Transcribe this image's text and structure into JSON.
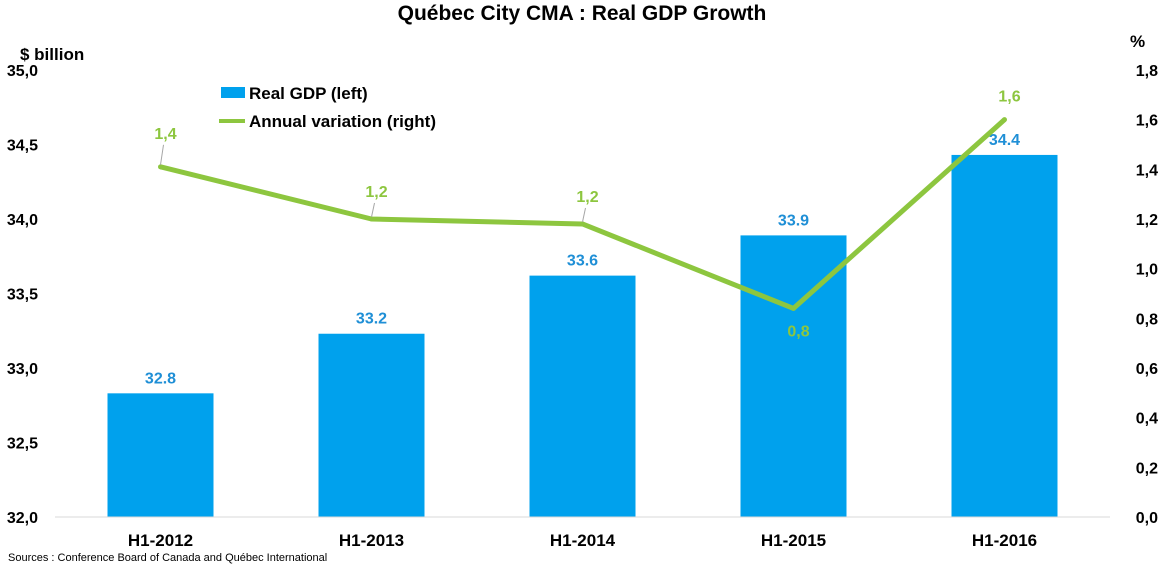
{
  "chart_data": {
    "type": "bar",
    "title": "Québec City CMA : Real GDP Growth",
    "categories": [
      "H1-2012",
      "H1-2013",
      "H1-2014",
      "H1-2015",
      "H1-2016"
    ],
    "left_axis": {
      "unit_label": "$ billion",
      "ylim": [
        32.0,
        35.0
      ],
      "ticks": [
        "32,0",
        "32,5",
        "33,0",
        "33,5",
        "34,0",
        "34,5",
        "35,0"
      ],
      "tick_values": [
        32.0,
        32.5,
        33.0,
        33.5,
        34.0,
        34.5,
        35.0
      ]
    },
    "right_axis": {
      "unit_label": "%",
      "ylim": [
        0.0,
        1.8
      ],
      "ticks": [
        "0,0",
        "0,2",
        "0,4",
        "0,6",
        "0,8",
        "1,0",
        "1,2",
        "1,4",
        "1,6",
        "1,8"
      ],
      "tick_values": [
        0.0,
        0.2,
        0.4,
        0.6,
        0.8,
        1.0,
        1.2,
        1.4,
        1.6,
        1.8
      ]
    },
    "series": [
      {
        "name": "Real GDP (left)",
        "kind": "bar",
        "axis": "left",
        "color": "#00a1ed",
        "label_color": "#1f8fd6",
        "values": [
          32.83,
          33.23,
          33.62,
          33.89,
          34.43
        ],
        "labels": [
          "32.8",
          "33.2",
          "33.6",
          "33.9",
          "34.4"
        ]
      },
      {
        "name": "Annual variation (right)",
        "kind": "line",
        "axis": "right",
        "color": "#8dc63f",
        "values": [
          1.41,
          1.2,
          1.18,
          0.84,
          1.6
        ],
        "labels": [
          "1,4",
          "1,2",
          "1,2",
          "0,8",
          "1,6"
        ]
      }
    ],
    "legend": "top-left",
    "grid": false
  },
  "source": "Sources : Conference Board of Canada and Québec International"
}
